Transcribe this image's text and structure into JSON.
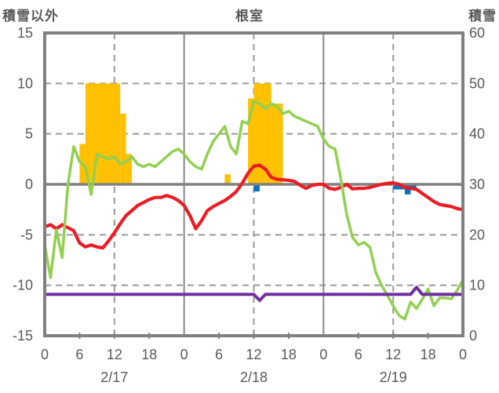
{
  "header": {
    "left_label": "積雪以外",
    "title": "根室",
    "right_label": "積雪"
  },
  "chart_data": {
    "type": "line",
    "title": "根室",
    "left_axis": {
      "label": "積雪以外",
      "min": -15,
      "max": 15,
      "ticks": [
        15,
        10,
        5,
        0,
        -5,
        -10,
        -15
      ]
    },
    "right_axis": {
      "label": "積雪",
      "min": 0,
      "max": 60,
      "ticks": [
        60,
        50,
        40,
        30,
        20,
        10,
        0
      ]
    },
    "x_axis": {
      "days": [
        "2/17",
        "2/18",
        "2/19"
      ],
      "hour_ticks": [
        0,
        6,
        12,
        18
      ],
      "end_label": "0",
      "hours_per_day": 24,
      "hours_total": 72
    },
    "grid": {
      "dashed_left_values": [
        10,
        5,
        -5,
        -10
      ],
      "zero_line_left_value": 0,
      "dashed_hours": [
        12,
        36,
        60
      ],
      "solid_hours": [
        24,
        48
      ]
    },
    "series": [
      {
        "name": "yellow-bars",
        "type": "bar",
        "axis": "left",
        "color": "#FFC000",
        "points": [
          {
            "hour": 6,
            "value": 4
          },
          {
            "hour": 7,
            "value": 10
          },
          {
            "hour": 8,
            "value": 10
          },
          {
            "hour": 9,
            "value": 10
          },
          {
            "hour": 10,
            "value": 10
          },
          {
            "hour": 11,
            "value": 10
          },
          {
            "hour": 12,
            "value": 10
          },
          {
            "hour": 13,
            "value": 7
          },
          {
            "hour": 14,
            "value": 3
          },
          {
            "hour": 31,
            "value": 1
          },
          {
            "hour": 35,
            "value": 8.5
          },
          {
            "hour": 36,
            "value": 10
          },
          {
            "hour": 37,
            "value": 10
          },
          {
            "hour": 38,
            "value": 10
          },
          {
            "hour": 39,
            "value": 8
          },
          {
            "hour": 40,
            "value": 8
          }
        ]
      },
      {
        "name": "blue-bars",
        "type": "bar",
        "axis": "left",
        "color": "#0070C0",
        "points": [
          {
            "hour": 36,
            "value": -0.7
          },
          {
            "hour": 60,
            "value": -0.5
          },
          {
            "hour": 61,
            "value": -0.5
          },
          {
            "hour": 62,
            "value": -1.0
          },
          {
            "hour": 63,
            "value": -0.5
          }
        ]
      },
      {
        "name": "red-line",
        "type": "line",
        "axis": "left",
        "color": "#ED1C24",
        "width": 4.2,
        "values": [
          -4.2,
          -4,
          -4.4,
          -4,
          -4.3,
          -4.6,
          -5.8,
          -6.2,
          -6,
          -6.2,
          -6.3,
          -5.6,
          -4.8,
          -3.9,
          -3.1,
          -2.6,
          -2.1,
          -1.8,
          -1.5,
          -1.3,
          -1.3,
          -1.1,
          -1.3,
          -1.6,
          -2.1,
          -3.1,
          -4.4,
          -3.6,
          -2.6,
          -2.2,
          -1.9,
          -1.6,
          -1.2,
          -0.7,
          0.1,
          1.1,
          1.8,
          1.9,
          1.5,
          0.7,
          0.5,
          0.45,
          0.4,
          0.3,
          -0.1,
          -0.4,
          -0.1,
          0,
          0,
          -0.4,
          -0.5,
          -0.3,
          0,
          -0.45,
          -0.4,
          -0.4,
          -0.3,
          -0.15,
          0,
          0.1,
          0.15,
          0,
          -0.3,
          -0.4,
          -0.5,
          -0.9,
          -1.3,
          -1.7,
          -2,
          -2.1,
          -2.2,
          -2.4,
          -2.5
        ]
      },
      {
        "name": "green-line",
        "type": "line",
        "axis": "right",
        "color": "#92D050",
        "width": 3.5,
        "values": [
          18,
          11.5,
          21,
          15.5,
          30,
          37.5,
          34.5,
          33.5,
          28,
          36,
          35.5,
          35,
          35.5,
          34,
          34.5,
          35.5,
          34,
          33.5,
          34,
          33.5,
          34.5,
          35.5,
          36.5,
          37,
          36,
          34.5,
          33.5,
          33,
          36,
          38.5,
          40,
          41.5,
          37.5,
          36,
          42.5,
          42,
          46.5,
          46,
          45,
          46,
          45.5,
          44,
          44.5,
          43.5,
          43,
          42.5,
          42,
          41.5,
          39,
          37.5,
          37,
          31,
          24,
          19.5,
          18,
          18.5,
          17.5,
          12.5,
          10,
          8,
          5.9,
          4,
          3.3,
          6.7,
          5.4,
          7.2,
          9.3,
          5.9,
          7.5,
          7.5,
          7.3,
          9,
          11
        ]
      },
      {
        "name": "purple-line",
        "type": "line",
        "axis": "left",
        "color": "#7030A0",
        "width": 4,
        "values": [
          -10.9,
          -10.9,
          -10.9,
          -10.9,
          -10.9,
          -10.9,
          -10.9,
          -10.9,
          -10.9,
          -10.9,
          -10.9,
          -10.9,
          -10.9,
          -10.9,
          -10.9,
          -10.9,
          -10.9,
          -10.9,
          -10.9,
          -10.9,
          -10.9,
          -10.9,
          -10.9,
          -10.9,
          -10.9,
          -10.9,
          -10.9,
          -10.9,
          -10.9,
          -10.9,
          -10.9,
          -10.9,
          -10.9,
          -10.9,
          -10.9,
          -10.9,
          -10.9,
          -11.5,
          -10.9,
          -10.9,
          -10.9,
          -10.9,
          -10.9,
          -10.9,
          -10.9,
          -10.9,
          -10.9,
          -10.9,
          -10.9,
          -10.9,
          -10.9,
          -10.9,
          -10.9,
          -10.9,
          -10.9,
          -10.9,
          -10.9,
          -10.9,
          -10.9,
          -10.9,
          -10.9,
          -10.9,
          -10.9,
          -10.9,
          -10.2,
          -10.9,
          -10.9,
          -10.9,
          -10.9,
          -10.9,
          -10.9,
          -10.9,
          -10.9
        ]
      }
    ]
  }
}
